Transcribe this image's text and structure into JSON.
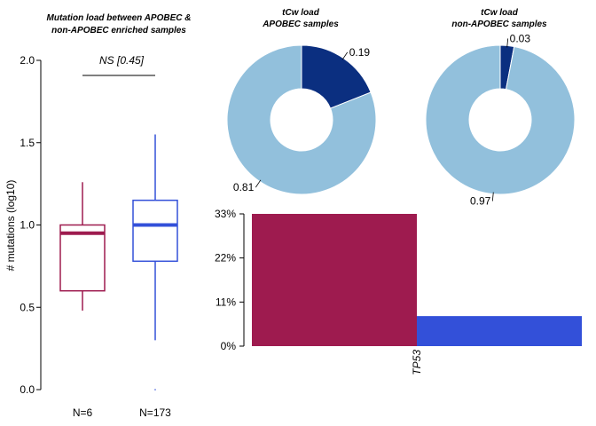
{
  "colors": {
    "apobec": "#9e1b4f",
    "non_apobec": "#3350d9",
    "pie_light": "#92c0dc",
    "pie_dark": "#0b2f80"
  },
  "chart_data": [
    {
      "type": "box",
      "title": [
        "Mutation load between APOBEC &",
        "non-APOBEC enriched samples"
      ],
      "ylabel": "# mutations (log10)",
      "ylim": [
        0,
        2.0
      ],
      "yticks": [
        "0.0",
        "0.5",
        "1.0",
        "1.5",
        "2.0"
      ],
      "significance": "NS [0.45]",
      "groups": [
        {
          "label": "N=6",
          "color": "#9e1b4f",
          "whisker_low": 0.48,
          "q1": 0.6,
          "median": 0.95,
          "q3": 1.0,
          "whisker_high": 1.26,
          "outliers": []
        },
        {
          "label": "N=173",
          "color": "#3350d9",
          "whisker_low": 0.3,
          "q1": 0.78,
          "median": 1.0,
          "q3": 1.15,
          "whisker_high": 1.55,
          "outliers": [
            0.0
          ]
        }
      ]
    },
    {
      "type": "pie",
      "title": [
        "tCw load",
        "APOBEC samples"
      ],
      "slices": [
        {
          "label": "0.19",
          "value": 0.19,
          "color": "#0b2f80"
        },
        {
          "label": "0.81",
          "value": 0.81,
          "color": "#92c0dc"
        }
      ]
    },
    {
      "type": "pie",
      "title": [
        "tCw load",
        "non-APOBEC samples"
      ],
      "slices": [
        {
          "label": "0.03",
          "value": 0.03,
          "color": "#0b2f80"
        },
        {
          "label": "0.97",
          "value": 0.97,
          "color": "#92c0dc"
        }
      ]
    },
    {
      "type": "bar",
      "categories": [
        "TP53"
      ],
      "yticks": [
        "0%",
        "11%",
        "22%",
        "33%"
      ],
      "ylim": [
        0,
        33
      ],
      "series": [
        {
          "values": [
            33
          ],
          "color": "#9e1b4f"
        },
        {
          "values": [
            7.5
          ],
          "color": "#3350d9"
        }
      ]
    }
  ]
}
